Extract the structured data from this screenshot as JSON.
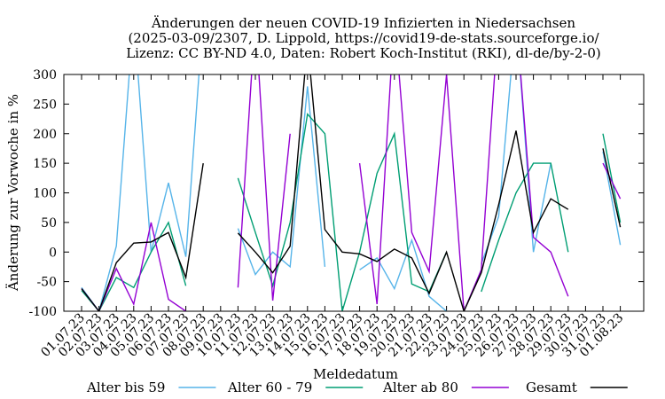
{
  "chart_data": {
    "type": "line",
    "title": [
      "Änderungen der neuen COVID-19 Infizierten in Niedersachsen",
      "(2025-03-09/2307, D. Lippold, https://covid19-de-stats.sourceforge.io/",
      "Lizenz: CC BY-ND 4.0, Daten: Robert Koch-Institut (RKI), dl-de/by-2-0)"
    ],
    "xlabel": "Meldedatum",
    "ylabel": "Änderung zur Vorwoche in %",
    "ylim": [
      -100,
      300
    ],
    "yticks": [
      -100,
      -50,
      0,
      50,
      100,
      150,
      200,
      250,
      300
    ],
    "grid": false,
    "legend_position": "bottom",
    "categories": [
      "01.07.23",
      "02.07.23",
      "03.07.23",
      "04.07.23",
      "05.07.23",
      "06.07.23",
      "07.07.23",
      "08.07.23",
      "09.07.23",
      "10.07.23",
      "11.07.23",
      "12.07.23",
      "13.07.23",
      "14.07.23",
      "15.07.23",
      "16.07.23",
      "17.07.23",
      "18.07.23",
      "19.07.23",
      "20.07.23",
      "21.07.23",
      "22.07.23",
      "23.07.23",
      "24.07.23",
      "25.07.23",
      "26.07.23",
      "27.07.23",
      "28.07.23",
      "29.07.23",
      "30.07.23",
      "31.07.23",
      "01.08.23"
    ],
    "series": [
      {
        "name": "Alter bis 59",
        "color": "#56b4e9",
        "values": [
          -60,
          -100,
          10,
          400,
          0,
          117,
          -8,
          400,
          null,
          40,
          -38,
          0,
          -25,
          280,
          -25,
          null,
          -30,
          -10,
          -62,
          20,
          -75,
          -100,
          null,
          -20,
          60,
          400,
          0,
          150,
          null,
          null,
          170,
          12
        ]
      },
      {
        "name": "Alter 60 - 79",
        "color": "#009e73",
        "values": [
          -65,
          -100,
          -43,
          -60,
          0,
          50,
          -57,
          null,
          null,
          125,
          33,
          -57,
          50,
          233,
          200,
          -100,
          0,
          133,
          200,
          -54,
          -67,
          0,
          null,
          -67,
          20,
          100,
          150,
          150,
          0,
          null,
          200,
          50
        ]
      },
      {
        "name": "Alter ab 80",
        "color": "#9400d3",
        "values": [
          -62,
          -100,
          -28,
          -88,
          50,
          -80,
          -100,
          null,
          null,
          -60,
          400,
          -82,
          200,
          null,
          null,
          null,
          150,
          -88,
          400,
          33,
          -33,
          300,
          -100,
          -30,
          400,
          400,
          25,
          0,
          -75,
          null,
          150,
          90
        ]
      },
      {
        "name": "Gesamt",
        "color": "#000000",
        "values": [
          -62,
          -100,
          -18,
          15,
          17,
          33,
          -43,
          150,
          null,
          32,
          0,
          -35,
          10,
          355,
          38,
          0,
          -3,
          -16,
          5,
          -10,
          -70,
          0,
          -100,
          -35,
          80,
          205,
          33,
          90,
          72,
          null,
          175,
          42
        ]
      }
    ]
  }
}
